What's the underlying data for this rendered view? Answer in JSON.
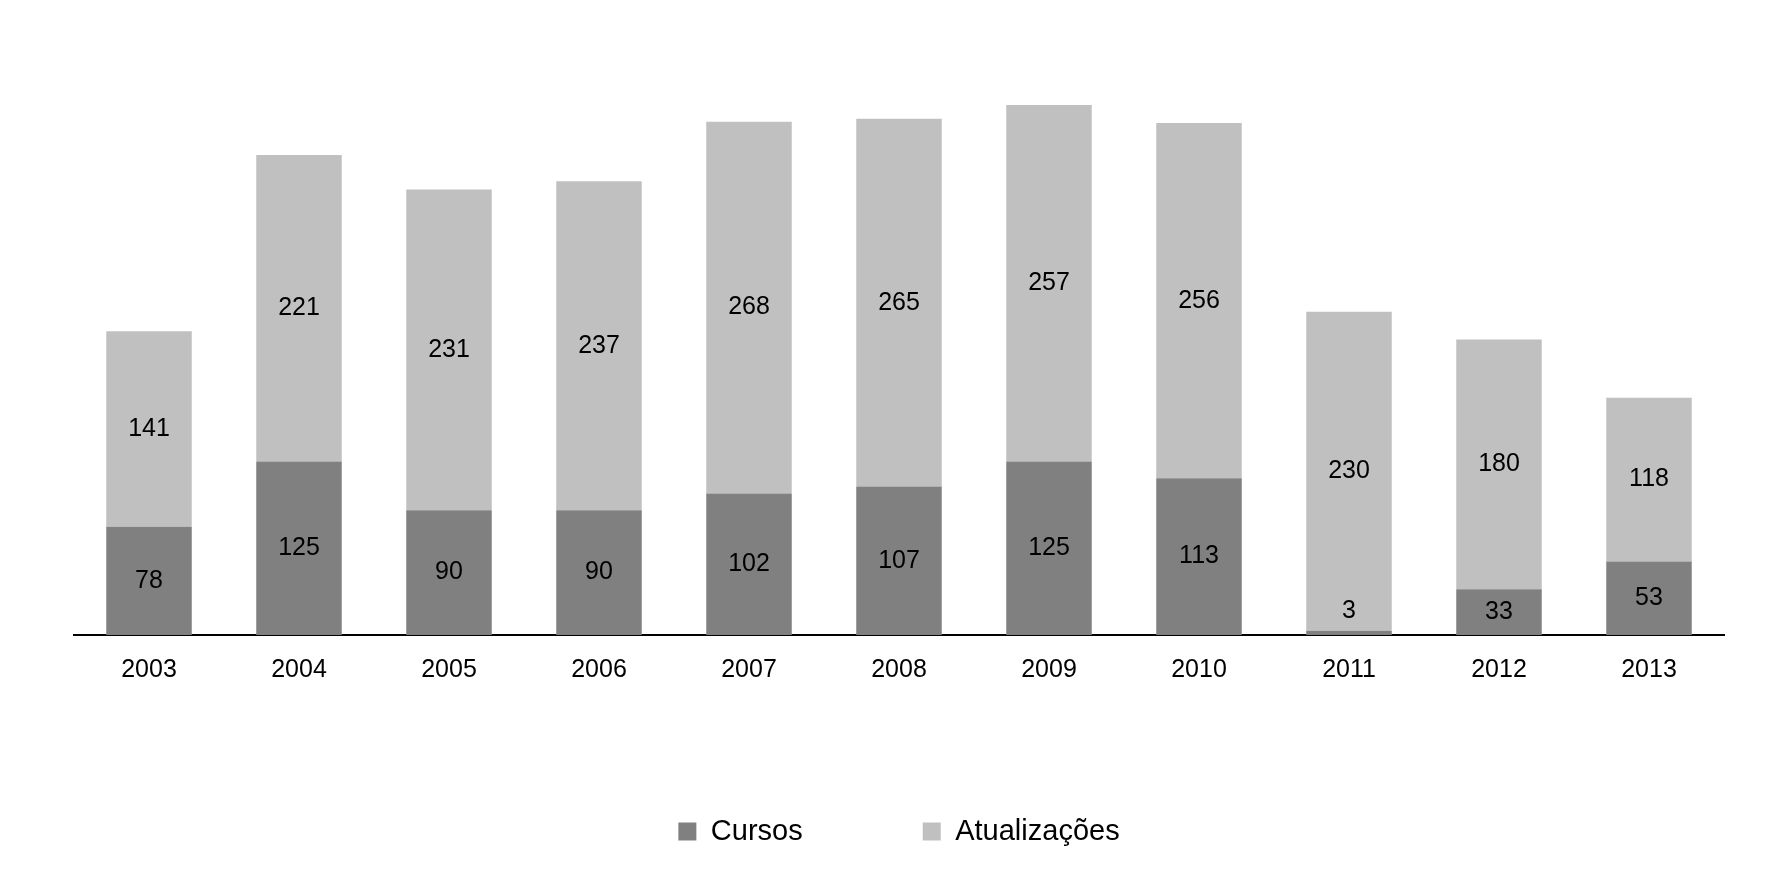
{
  "chart_data": {
    "type": "bar",
    "stacked": true,
    "data_labels": true,
    "legend": "bottom",
    "categories": [
      "2003",
      "2004",
      "2005",
      "2006",
      "2007",
      "2008",
      "2009",
      "2010",
      "2011",
      "2012",
      "2013"
    ],
    "series": [
      {
        "name": "Cursos",
        "color": "#808080",
        "values": [
          78,
          125,
          90,
          90,
          102,
          107,
          125,
          113,
          3,
          33,
          53
        ]
      },
      {
        "name": "Atualizações",
        "color": "#c0c0c0",
        "values": [
          141,
          221,
          231,
          237,
          268,
          265,
          257,
          256,
          230,
          180,
          118
        ]
      }
    ]
  }
}
